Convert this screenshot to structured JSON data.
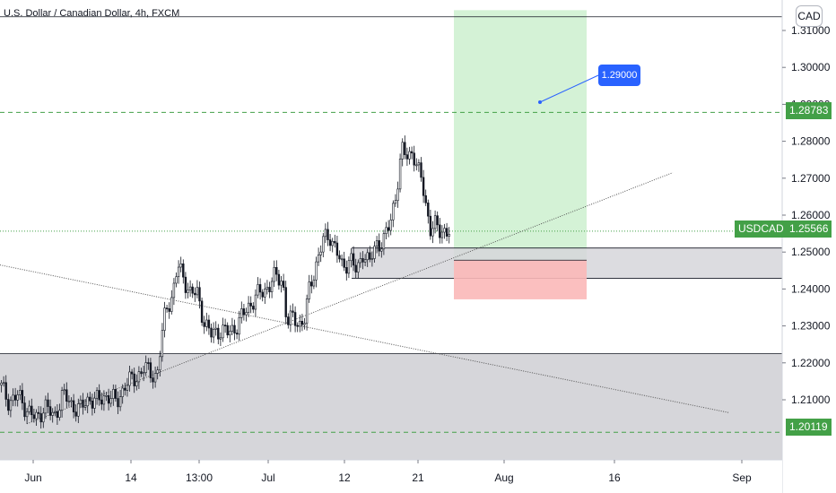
{
  "header": {
    "symbol_title": "U.S. Dollar / Canadian Dollar, 4h, FXCM",
    "currency": "CAD"
  },
  "price_tags": {
    "target": "1.28783",
    "current": "1.25566",
    "symbol": "USDCAD",
    "bottom": "1.20119"
  },
  "annotations": {
    "callout": "1.29000"
  },
  "colors": {
    "up": "#131722",
    "tag_green": "#43a047",
    "profit_zone": "#d4f2d6",
    "loss_zone": "#fbb8b8",
    "gray_zone": "#d6d6da",
    "callout": "#2962ff",
    "dashed": "#43a047"
  },
  "chart_data": {
    "type": "candlestick",
    "title": "U.S. Dollar / Canadian Dollar, 4h, FXCM",
    "ylim": [
      1.197,
      1.3155
    ],
    "y_ticks": [
      "1.31000",
      "1.30000",
      "1.29000",
      "1.28000",
      "1.27000",
      "1.26000",
      "1.25000",
      "1.24000",
      "1.23000",
      "1.22000",
      "1.21000"
    ],
    "x_ticks": [
      "Jun",
      "14",
      "13:00",
      "Jul",
      "12",
      "21",
      "Aug",
      "16",
      "Sep"
    ],
    "close_path": [
      [
        0,
        1.214
      ],
      [
        10,
        1.2095
      ],
      [
        20,
        1.211
      ],
      [
        30,
        1.2075
      ],
      [
        40,
        1.2045
      ],
      [
        50,
        1.2085
      ],
      [
        60,
        1.205
      ],
      [
        70,
        1.2115
      ],
      [
        80,
        1.2085
      ],
      [
        90,
        1.2075
      ],
      [
        100,
        1.2105
      ],
      [
        110,
        1.2095
      ],
      [
        120,
        1.2115
      ],
      [
        130,
        1.209
      ],
      [
        140,
        1.2145
      ],
      [
        150,
        1.2155
      ],
      [
        160,
        1.2185
      ],
      [
        170,
        1.217
      ],
      [
        175,
        1.2165
      ],
      [
        180,
        1.226
      ],
      [
        185,
        1.235
      ],
      [
        192,
        1.238
      ],
      [
        198,
        1.246
      ],
      [
        205,
        1.243
      ],
      [
        212,
        1.239
      ],
      [
        220,
        1.2385
      ],
      [
        228,
        1.231
      ],
      [
        235,
        1.2275
      ],
      [
        245,
        1.229
      ],
      [
        255,
        1.228
      ],
      [
        265,
        1.2305
      ],
      [
        275,
        1.2345
      ],
      [
        285,
        1.238
      ],
      [
        295,
        1.2395
      ],
      [
        305,
        1.243
      ],
      [
        315,
        1.2425
      ],
      [
        320,
        1.231
      ],
      [
        328,
        1.232
      ],
      [
        335,
        1.2305
      ],
      [
        340,
        1.232
      ],
      [
        345,
        1.24
      ],
      [
        352,
        1.2465
      ],
      [
        360,
        1.253
      ],
      [
        368,
        1.2545
      ],
      [
        375,
        1.2505
      ],
      [
        382,
        1.245
      ],
      [
        390,
        1.249
      ],
      [
        398,
        1.244
      ],
      [
        405,
        1.2505
      ],
      [
        412,
        1.247
      ],
      [
        420,
        1.252
      ],
      [
        428,
        1.2535
      ],
      [
        435,
        1.2575
      ],
      [
        442,
        1.267
      ],
      [
        448,
        1.2775
      ],
      [
        455,
        1.2755
      ],
      [
        460,
        1.278
      ],
      [
        465,
        1.2725
      ],
      [
        470,
        1.2695
      ],
      [
        475,
        1.2625
      ],
      [
        480,
        1.2565
      ],
      [
        485,
        1.257
      ],
      [
        490,
        1.2555
      ],
      [
        495,
        1.256
      ],
      [
        502,
        1.2557
      ]
    ],
    "zones": {
      "profit": {
        "price_top": 1.3155,
        "price_bottom": 1.2478
      },
      "loss": {
        "price_top": 1.2478,
        "price_bottom": 1.2372
      },
      "gray_upper": {
        "price_top": 1.2511,
        "price_bottom": 1.2429
      },
      "gray_lower": {
        "price_top": 1.2225,
        "price_bottom": 1.197
      }
    },
    "levels": {
      "target": 1.28783,
      "current": 1.25566,
      "bottom": 1.20119,
      "top_line": 1.3137
    },
    "trendlines": [
      {
        "name": "rising",
        "from": [
          30,
          1.2035
        ],
        "to": [
          750,
          1.2715
        ]
      },
      {
        "name": "falling",
        "from": [
          0,
          1.2465
        ],
        "to": [
          813,
          1.2065
        ]
      }
    ]
  }
}
